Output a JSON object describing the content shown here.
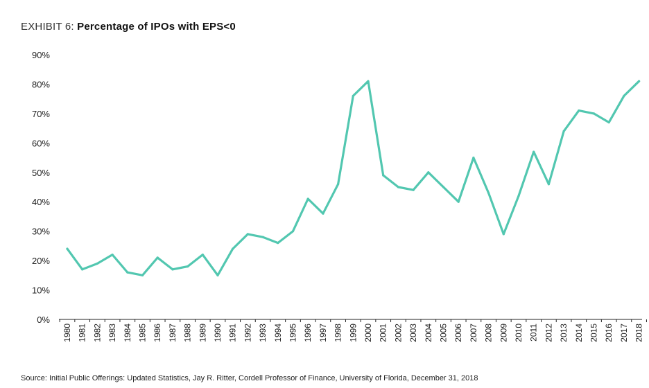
{
  "title": {
    "prefix": "EXHIBIT 6:",
    "main": "Percentage of IPOs with EPS<0"
  },
  "source": "Source: Initial Public Offerings: Updated Statistics, Jay R. Ritter, Cordell Professor of Finance, University of Florida, December 31, 2018",
  "colors": {
    "line": "#52c7b0",
    "axis": "#222222"
  },
  "chart_data": {
    "type": "line",
    "title": "Percentage of IPOs with EPS<0",
    "xlabel": "",
    "ylabel": "",
    "ylim": [
      0,
      90
    ],
    "y_ticks": [
      0,
      10,
      20,
      30,
      40,
      50,
      60,
      70,
      80,
      90
    ],
    "y_tick_labels": [
      "0%",
      "10%",
      "20%",
      "30%",
      "40%",
      "50%",
      "60%",
      "70%",
      "80%",
      "90%"
    ],
    "grid": false,
    "categories": [
      "1980",
      "1981",
      "1982",
      "1983",
      "1984",
      "1985",
      "1986",
      "1987",
      "1988",
      "1989",
      "1990",
      "1991",
      "1992",
      "1993",
      "1994",
      "1995",
      "1996",
      "1997",
      "1998",
      "1999",
      "2000",
      "2001",
      "2002",
      "2003",
      "2004",
      "2005",
      "2006",
      "2007",
      "2008",
      "2009",
      "2010",
      "2011",
      "2012",
      "2013",
      "2014",
      "2015",
      "2016",
      "2017",
      "2018"
    ],
    "series": [
      {
        "values": [
          24,
          17,
          19,
          22,
          16,
          15,
          21,
          17,
          18,
          22,
          15,
          24,
          29,
          28,
          26,
          30,
          41,
          36,
          46,
          76,
          81,
          49,
          45,
          44,
          50,
          45,
          40,
          55,
          43,
          29,
          42,
          57,
          46,
          64,
          71,
          70,
          67,
          76,
          81
        ]
      }
    ]
  }
}
